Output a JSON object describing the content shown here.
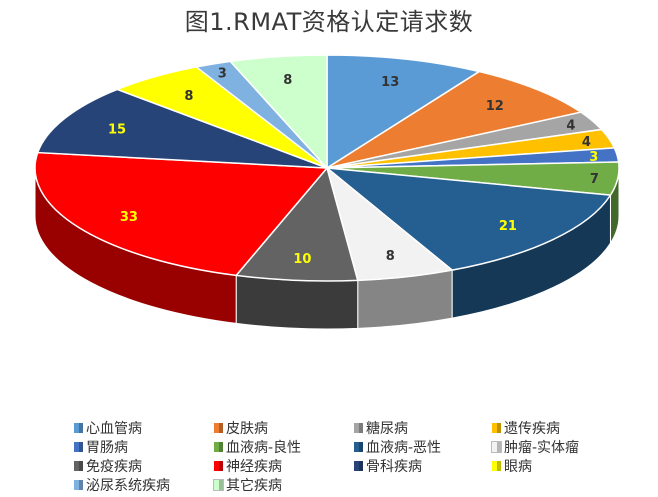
{
  "chart_data": {
    "type": "pie",
    "title": "图1.RMAT资格认定请求数",
    "categories": [
      "心血管病",
      "皮肤病",
      "糖尿病",
      "遗传疾病",
      "胃肠病",
      "血液病-良性",
      "血液病-恶性",
      "肿瘤-实体瘤",
      "免疫疾病",
      "神经疾病",
      "骨科疾病",
      "眼病",
      "泌尿系统疾病",
      "其它疾病"
    ],
    "values": [
      13,
      12,
      4,
      4,
      3,
      7,
      21,
      8,
      10,
      33,
      15,
      8,
      3,
      8
    ],
    "colors": [
      "#5b9bd5",
      "#ed7d31",
      "#a5a5a5",
      "#ffc000",
      "#4472c4",
      "#70ad47",
      "#255e91",
      "#f2f2f2",
      "#636363",
      "#ff0000",
      "#264478",
      "#ffff00",
      "#7fb2e0",
      "#ccffcc"
    ],
    "label_colors": [
      "#333333",
      "#333333",
      "#333333",
      "#333333",
      "#ffff00",
      "#333333",
      "#ffff00",
      "#333333",
      "#ffff00",
      "#ffff00",
      "#ffff00",
      "#333333",
      "#333333",
      "#333333"
    ],
    "legend_placement": "bottom"
  }
}
